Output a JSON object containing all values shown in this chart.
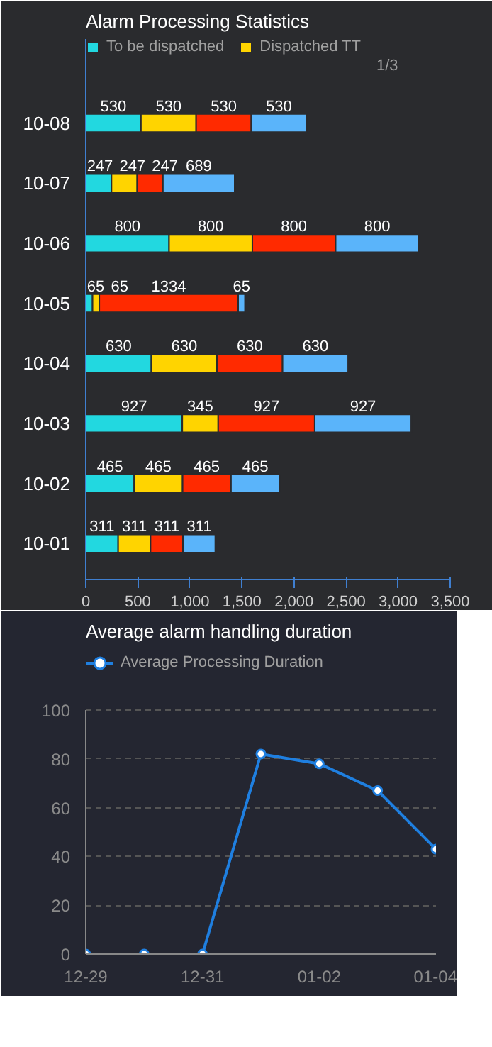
{
  "chart_data": [
    {
      "type": "bar",
      "title": "Alarm Processing Statistics",
      "orientation": "horizontal",
      "stacked": true,
      "categories": [
        "10-08",
        "10-07",
        "10-06",
        "10-05",
        "10-04",
        "10-03",
        "10-02",
        "10-01"
      ],
      "series": [
        {
          "name": "To be dispatched",
          "color": "#22d8e0",
          "values": [
            530,
            247,
            800,
            65,
            630,
            927,
            465,
            311
          ]
        },
        {
          "name": "Dispatched TT",
          "color": "#ffd400",
          "values": [
            530,
            247,
            800,
            65,
            630,
            345,
            465,
            311
          ]
        },
        {
          "color": "#ff2a00",
          "values": [
            530,
            247,
            800,
            1334,
            630,
            927,
            465,
            311
          ]
        },
        {
          "color": "#5ab4fa",
          "values": [
            530,
            689,
            800,
            65,
            630,
            927,
            465,
            311
          ]
        }
      ],
      "xlim": [
        0,
        3500
      ],
      "xticks": [
        0,
        500,
        {
          "value": 1000,
          "label": "1,000"
        },
        {
          "value": 1500,
          "label": "1,500"
        },
        {
          "value": 2000,
          "label": "2,000"
        },
        {
          "value": 2500,
          "label": "2,500"
        },
        {
          "value": 3000,
          "label": "3,000"
        },
        {
          "value": 3500,
          "label": "3,500"
        }
      ],
      "data_labels": true,
      "grid": false,
      "legend": "top left",
      "annotations": [
        "1/3"
      ]
    },
    {
      "type": "line",
      "title": "Average alarm handling duration",
      "categories": [
        "12-29",
        null,
        "12-31",
        null,
        "01-02",
        null,
        "01-04"
      ],
      "series": [
        {
          "name": "Average Processing Duration",
          "color": "#1f7fe0",
          "values": [
            0,
            0,
            0,
            82,
            78,
            67,
            43
          ]
        }
      ],
      "ylim": [
        0,
        100
      ],
      "yticks": [
        0,
        20,
        40,
        60,
        80,
        100
      ],
      "grid": "y",
      "legend": "top left",
      "marker": "circle",
      "line_style": "solid"
    }
  ]
}
